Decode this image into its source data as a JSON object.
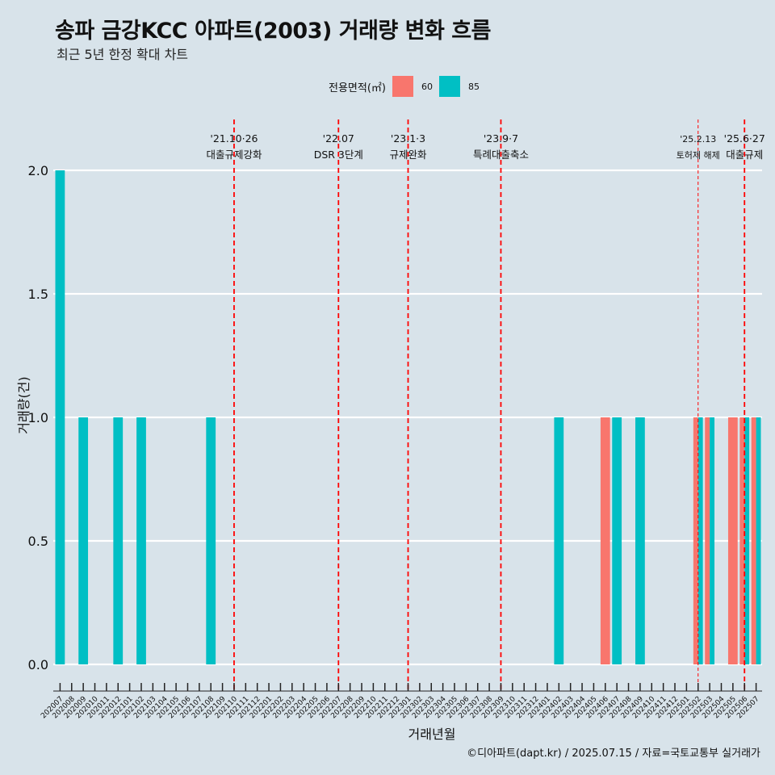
{
  "title": "송파 금강KCC 아파트(2003) 거래량 변화 흐름",
  "subtitle": "최근 5년 한정 확대 차트",
  "legend": {
    "title": "전용면적(㎡)",
    "items": [
      {
        "label": "60",
        "color": "#f8766d"
      },
      {
        "label": "85",
        "color": "#00bfc4"
      }
    ]
  },
  "caption": "©디아파트(dapt.kr) / 2025.07.15 / 자료=국토교통부 실거래가",
  "chart_data": {
    "type": "bar",
    "xlabel": "거래년월",
    "ylabel": "거래량(건)",
    "ylim": [
      0,
      2
    ],
    "yticks": [
      "0.0",
      "0.5",
      "1.0",
      "1.5",
      "2.0"
    ],
    "ytick_values": [
      0,
      0.5,
      1.0,
      1.5,
      2.0
    ],
    "categories": [
      "202007",
      "202008",
      "202009",
      "202010",
      "202011",
      "202012",
      "202101",
      "202102",
      "202103",
      "202104",
      "202105",
      "202106",
      "202107",
      "202108",
      "202109",
      "202110",
      "202111",
      "202112",
      "202201",
      "202202",
      "202203",
      "202204",
      "202205",
      "202206",
      "202207",
      "202208",
      "202209",
      "202210",
      "202211",
      "202212",
      "202301",
      "202302",
      "202303",
      "202304",
      "202305",
      "202306",
      "202307",
      "202308",
      "202309",
      "202310",
      "202311",
      "202312",
      "202401",
      "202402",
      "202403",
      "202404",
      "202405",
      "202406",
      "202407",
      "202408",
      "202409",
      "202410",
      "202411",
      "202412",
      "202501",
      "202502",
      "202503",
      "202504",
      "202505",
      "202506",
      "202507"
    ],
    "series": [
      {
        "name": "60",
        "color": "#f8766d",
        "values": [
          0,
          0,
          0,
          0,
          0,
          0,
          0,
          0,
          0,
          0,
          0,
          0,
          0,
          0,
          0,
          0,
          0,
          0,
          0,
          0,
          0,
          0,
          0,
          0,
          0,
          0,
          0,
          0,
          0,
          0,
          0,
          0,
          0,
          0,
          0,
          0,
          0,
          0,
          0,
          0,
          0,
          0,
          0,
          0,
          0,
          0,
          0,
          1,
          0,
          0,
          0,
          0,
          0,
          0,
          0,
          1,
          1,
          0,
          1,
          1,
          1
        ]
      },
      {
        "name": "85",
        "color": "#00bfc4",
        "values": [
          2,
          0,
          1,
          0,
          0,
          1,
          0,
          1,
          0,
          0,
          0,
          0,
          0,
          1,
          0,
          0,
          0,
          0,
          0,
          0,
          0,
          0,
          0,
          0,
          0,
          0,
          0,
          0,
          0,
          0,
          0,
          0,
          0,
          0,
          0,
          0,
          0,
          0,
          0,
          0,
          0,
          0,
          0,
          1,
          0,
          0,
          0,
          0,
          1,
          0,
          1,
          0,
          0,
          0,
          0,
          1,
          1,
          0,
          0,
          1,
          1
        ]
      }
    ],
    "annotations": [
      {
        "date": "202110",
        "label_top": "'21.10·26",
        "label_bottom": "대출규제강화",
        "dash": "long"
      },
      {
        "date": "202207",
        "label_top": "'22.07",
        "label_bottom": "DSR 3단계",
        "dash": "long"
      },
      {
        "date": "202301",
        "label_top": "'23.1·3",
        "label_bottom": "규제완화",
        "dash": "long"
      },
      {
        "date": "202309",
        "label_top": "'23.9·7",
        "label_bottom": "특례대출축소",
        "dash": "long"
      },
      {
        "date": "202502",
        "label_top": "'25.2.13",
        "label_bottom": "토허제 해제",
        "dash": "short"
      },
      {
        "date": "202506",
        "label_top": "'25.6·27",
        "label_bottom": "대출규제",
        "dash": "long"
      }
    ],
    "annotation_color": "#ff0000",
    "grid": "horizontal-major",
    "legend_position": "top"
  }
}
